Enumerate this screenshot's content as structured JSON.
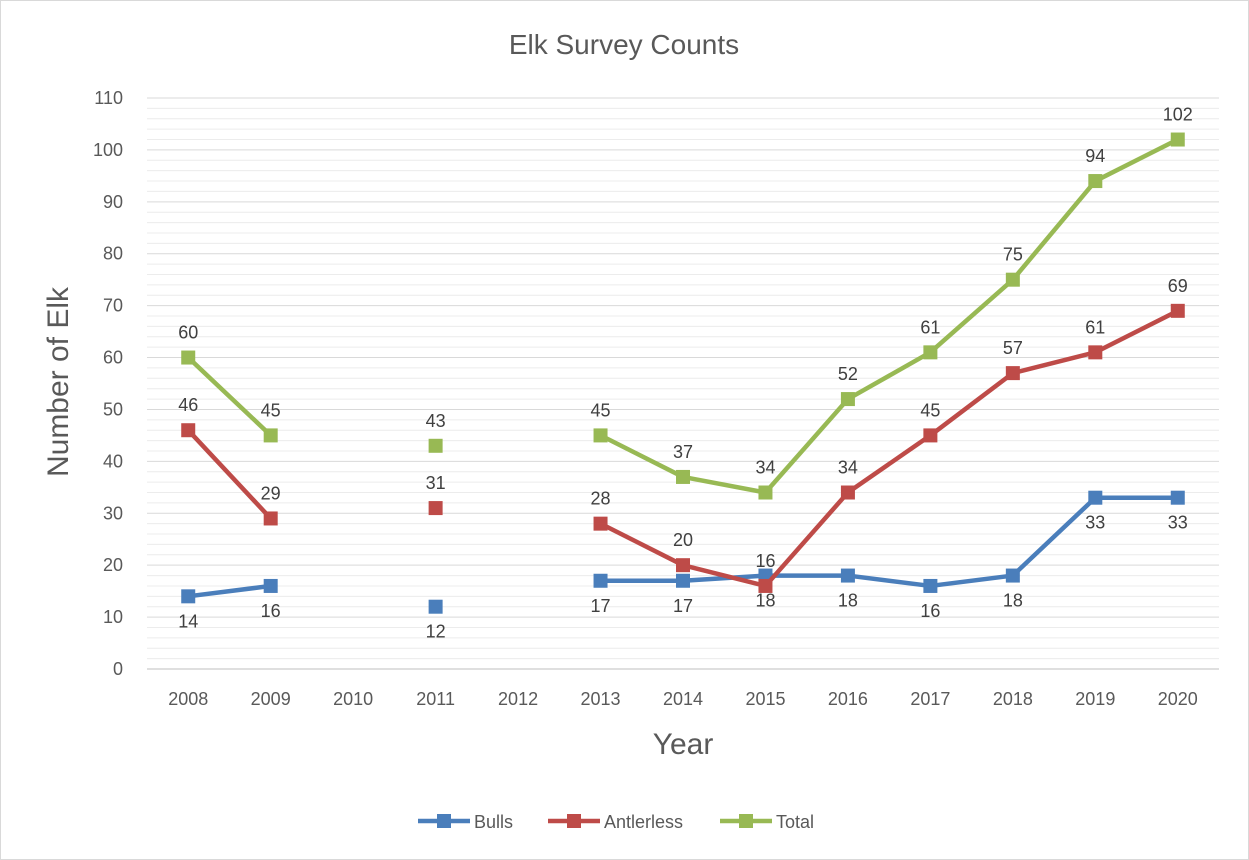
{
  "chart_data": {
    "type": "line",
    "title": "Elk Survey Counts",
    "xlabel": "Year",
    "ylabel": "Number of Elk",
    "categories": [
      "2008",
      "2009",
      "2010",
      "2011",
      "2012",
      "2013",
      "2014",
      "2015",
      "2016",
      "2017",
      "2018",
      "2019",
      "2020"
    ],
    "ylim": [
      0,
      110
    ],
    "yticks": [
      0,
      10,
      20,
      30,
      40,
      50,
      60,
      70,
      80,
      90,
      100,
      110
    ],
    "grid": true,
    "legend_position": "bottom",
    "series": [
      {
        "name": "Bulls",
        "color": "#4a7ebb",
        "values": [
          14,
          16,
          null,
          12,
          null,
          17,
          17,
          18,
          18,
          16,
          18,
          33,
          33
        ],
        "label_position": [
          "below",
          "below",
          null,
          "below",
          null,
          "below",
          "below",
          "below",
          "below",
          "below",
          "below",
          "below",
          "below"
        ]
      },
      {
        "name": "Antlerless",
        "color": "#be4b48",
        "values": [
          46,
          29,
          null,
          31,
          null,
          28,
          20,
          16,
          34,
          45,
          57,
          61,
          69
        ],
        "label_position": [
          "above",
          "above",
          null,
          "above",
          null,
          "above",
          "above",
          "above",
          "above",
          "above",
          "above",
          "above",
          "above"
        ]
      },
      {
        "name": "Total",
        "color": "#98b954",
        "values": [
          60,
          45,
          null,
          43,
          null,
          45,
          37,
          34,
          52,
          61,
          75,
          94,
          102
        ],
        "label_position": [
          "above",
          "above",
          null,
          "above",
          null,
          "above",
          "above",
          "above",
          "above",
          "above",
          "above",
          "above",
          "above"
        ]
      }
    ]
  }
}
